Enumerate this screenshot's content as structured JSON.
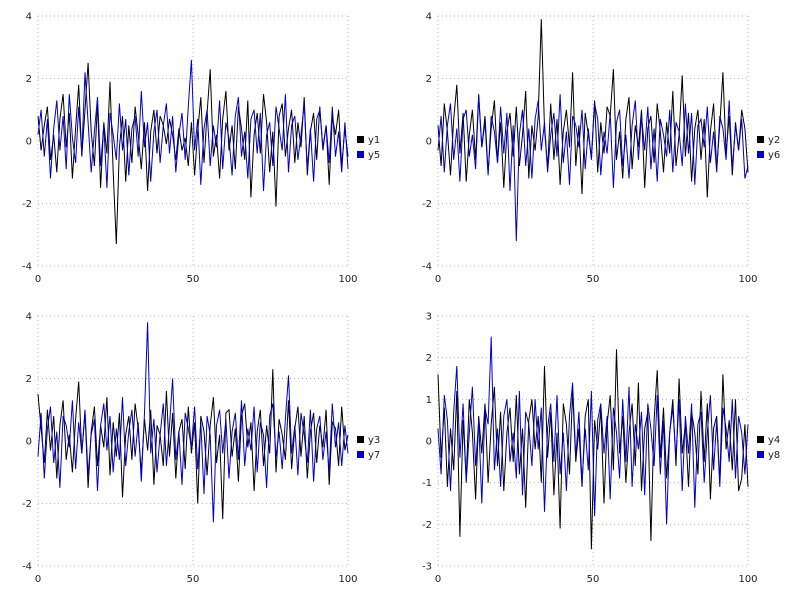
{
  "page": {
    "background": "#ffffff",
    "grid_color": "#b8b8b8",
    "tick_text_color": "#222222"
  },
  "chart_data": [
    {
      "type": "line",
      "x_range": [
        0,
        100
      ],
      "ylim": [
        -4,
        4
      ],
      "x_ticks": [
        0,
        50,
        100
      ],
      "y_ticks": [
        -4,
        -2,
        0,
        2,
        4
      ],
      "grid": true,
      "legend_position": "right",
      "series": [
        {
          "name": "y1",
          "color": "#000000",
          "values": [
            0.8,
            -0.3,
            0.5,
            1.1,
            -0.6,
            0.2,
            -1.0,
            0.7,
            1.5,
            -0.2,
            0.9,
            -1.2,
            0.4,
            1.8,
            -0.5,
            1.0,
            2.5,
            0.3,
            -0.8,
            1.2,
            -1.5,
            0.6,
            -0.4,
            1.9,
            -1.0,
            -3.3,
            -0.2,
            0.8,
            -1.3,
            0.5,
            -0.7,
            1.1,
            0.2,
            -0.9,
            0.6,
            -1.6,
            0.3,
            1.0,
            -0.4,
            0.8,
            0.5,
            -0.1,
            0.7,
            0.2,
            -0.6,
            0.4,
            -0.3,
            0.1,
            -0.8,
            0.6,
            -1.1,
            0.3,
            1.4,
            -0.7,
            0.9,
            2.3,
            -0.5,
            0.2,
            -1.2,
            0.7,
            1.6,
            -0.3,
            0.5,
            -0.9,
            1.1,
            0.4,
            -0.6,
            1.3,
            -1.8,
            0.2,
            0.9,
            -0.4,
            1.5,
            0.6,
            -1.0,
            0.3,
            -2.1,
            0.8,
            1.2,
            -0.5,
            0.4,
            1.0,
            -0.7,
            0.6,
            -0.2,
            1.4,
            -1.1,
            0.3,
            0.9,
            -0.6,
            1.1,
            -0.3,
            0.5,
            -1.4,
            0.8,
            0.2,
            1.0,
            -0.8,
            0.4,
            -0.5
          ]
        },
        {
          "name": "y5",
          "color": "#0000cc",
          "values": [
            0.2,
            1.0,
            -0.5,
            0.7,
            -1.2,
            0.4,
            1.3,
            -0.3,
            0.8,
            -0.9,
            1.5,
            0.1,
            -0.7,
            1.1,
            -0.4,
            2.2,
            0.6,
            -1.0,
            0.3,
            1.4,
            -0.8,
            0.5,
            -1.5,
            0.9,
            0.2,
            -0.6,
            1.2,
            -0.3,
            0.7,
            -1.1,
            0.4,
            0.8,
            -0.5,
            1.6,
            -0.2,
            0.6,
            -1.3,
            0.3,
            1.0,
            -0.7,
            0.5,
            1.2,
            -0.4,
            0.8,
            -1.0,
            0.2,
            0.9,
            -0.6,
            1.1,
            2.6,
            -0.3,
            0.7,
            -1.4,
            0.4,
            1.0,
            -0.8,
            0.5,
            -0.2,
            1.3,
            -0.9,
            0.6,
            0.1,
            -1.1,
            0.8,
            1.4,
            -0.5,
            0.3,
            -1.2,
            0.7,
            1.0,
            -0.4,
            0.9,
            -1.6,
            0.2,
            0.6,
            -0.8,
            1.1,
            0.4,
            -0.3,
            1.5,
            -1.0,
            0.5,
            0.8,
            -0.6,
            0.2,
            1.2,
            -0.9,
            0.4,
            -1.3,
            0.7,
            1.0,
            -0.2,
            0.5,
            -0.7,
            1.1,
            -0.5,
            0.3,
            -1.0,
            0.6,
            -0.9
          ]
        }
      ]
    },
    {
      "type": "line",
      "x_range": [
        0,
        100
      ],
      "ylim": [
        -4,
        4
      ],
      "x_ticks": [
        0,
        50,
        100
      ],
      "y_ticks": [
        -4,
        -2,
        0,
        2,
        4
      ],
      "grid": true,
      "legend_position": "right",
      "series": [
        {
          "name": "y2",
          "color": "#000000",
          "values": [
            0.5,
            -0.8,
            1.2,
            0.3,
            -1.1,
            0.7,
            1.8,
            -0.4,
            0.9,
            -1.3,
            0.2,
            1.0,
            -0.6,
            1.5,
            -0.2,
            0.8,
            -1.0,
            0.4,
            1.3,
            -0.7,
            0.6,
            -1.5,
            0.3,
            0.9,
            -0.5,
            1.1,
            -0.8,
            0.2,
            1.6,
            -1.2,
            0.5,
            -0.3,
            0.8,
            3.9,
            0.4,
            -0.9,
            1.2,
            -0.6,
            0.7,
            -1.4,
            0.3,
            1.0,
            -0.2,
            2.2,
            -0.8,
            0.5,
            -1.7,
            0.9,
            0.2,
            -0.5,
            1.3,
            -1.0,
            0.6,
            -0.4,
            1.1,
            0.8,
            2.3,
            -0.6,
            0.3,
            -1.2,
            0.7,
            1.4,
            -0.9,
            0.5,
            -0.2,
            1.0,
            -1.5,
            0.4,
            0.8,
            -0.7,
            1.2,
            0.3,
            -1.0,
            0.6,
            -0.4,
            1.6,
            -0.8,
            0.2,
            2.1,
            -0.5,
            0.9,
            -1.3,
            0.4,
            1.0,
            -0.6,
            0.7,
            -1.8,
            0.3,
            1.2,
            -0.9,
            0.5,
            2.2,
            -0.4,
            0.8,
            -1.1,
            0.6,
            -0.3,
            1.0,
            0.4,
            -1.0
          ]
        },
        {
          "name": "y6",
          "color": "#0000cc",
          "values": [
            -0.3,
            0.8,
            -1.0,
            0.5,
            1.2,
            -0.6,
            0.4,
            -1.3,
            0.7,
            1.0,
            -0.5,
            0.2,
            -0.9,
            1.4,
            -0.2,
            0.6,
            -1.1,
            0.8,
            0.3,
            -0.7,
            1.1,
            -0.4,
            0.9,
            -1.6,
            0.5,
            -3.2,
            0.2,
            1.0,
            -0.8,
            0.4,
            -1.2,
            0.7,
            1.3,
            -0.3,
            0.6,
            -1.0,
            0.2,
            0.9,
            -0.5,
            1.5,
            -0.7,
            0.3,
            -1.4,
            0.8,
            0.5,
            -0.2,
            1.0,
            -0.9,
            0.4,
            -0.6,
            1.2,
            0.7,
            -1.1,
            0.3,
            -0.4,
            0.9,
            -1.5,
            0.6,
            1.0,
            -0.8,
            0.2,
            -1.2,
            0.5,
            1.3,
            -0.6,
            0.8,
            -0.3,
            1.1,
            -0.9,
            0.4,
            -1.3,
            0.7,
            0.2,
            -0.5,
            1.0,
            -1.0,
            0.6,
            0.3,
            -0.8,
            1.2,
            -0.4,
            0.9,
            -1.4,
            0.5,
            0.7,
            -0.2,
            1.1,
            -0.7,
            0.3,
            -1.0,
            0.8,
            0.4,
            -0.6,
            1.3,
            -0.9,
            0.5,
            -0.3,
            0.7,
            -1.2,
            -0.8
          ]
        }
      ]
    },
    {
      "type": "line",
      "x_range": [
        0,
        100
      ],
      "ylim": [
        -4,
        4
      ],
      "x_ticks": [
        0,
        50,
        100
      ],
      "y_ticks": [
        -4,
        -2,
        0,
        2,
        4
      ],
      "grid": true,
      "legend_position": "right",
      "series": [
        {
          "name": "y3",
          "color": "#000000",
          "values": [
            1.5,
            0.4,
            -0.7,
            1.0,
            -0.3,
            0.8,
            -1.2,
            0.5,
            1.3,
            -0.6,
            0.2,
            -1.0,
            0.7,
            1.9,
            -0.4,
            0.9,
            -1.5,
            0.3,
            1.1,
            -0.8,
            0.5,
            -0.2,
            1.4,
            -1.1,
            0.6,
            -0.5,
            0.9,
            -1.8,
            0.2,
            0.8,
            -0.6,
            1.2,
            0.4,
            -1.0,
            0.7,
            -0.3,
            1.0,
            -1.4,
            0.5,
            0.2,
            -0.8,
            1.6,
            -0.5,
            0.9,
            -1.2,
            0.3,
            0.7,
            -0.9,
            1.1,
            -0.4,
            0.6,
            -2.0,
            0.8,
            0.3,
            -1.1,
            0.5,
            1.4,
            -0.7,
            0.2,
            -2.5,
            0.9,
            1.0,
            -0.5,
            0.4,
            -1.3,
            0.8,
            1.2,
            -0.2,
            0.6,
            -1.6,
            0.3,
            1.0,
            -0.8,
            0.5,
            -0.4,
            2.3,
            -1.0,
            0.7,
            0.2,
            -0.6,
            1.3,
            -0.9,
            0.4,
            1.1,
            -0.5,
            0.8,
            -1.2,
            0.3,
            0.9,
            -0.7,
            0.5,
            -0.2,
            1.0,
            -1.4,
            0.6,
            0.4,
            -0.8,
            1.1,
            -0.3,
            0.2
          ]
        },
        {
          "name": "y7",
          "color": "#0000cc",
          "values": [
            -0.5,
            0.9,
            -1.2,
            0.4,
            1.1,
            -0.7,
            0.3,
            -1.5,
            0.8,
            0.5,
            -0.2,
            1.3,
            -0.9,
            0.6,
            -0.4,
            1.0,
            -1.1,
            0.2,
            0.7,
            -1.6,
            0.5,
            1.2,
            -0.3,
            0.8,
            -1.0,
            0.4,
            -0.6,
            1.4,
            -0.8,
            0.3,
            1.0,
            -0.5,
            0.6,
            -1.3,
            0.9,
            3.8,
            -0.4,
            0.7,
            -1.0,
            0.2,
            1.2,
            -0.8,
            0.5,
            2.0,
            -0.6,
            0.3,
            -1.4,
            0.9,
            0.4,
            -0.2,
            1.1,
            -0.9,
            0.6,
            -1.7,
            0.8,
            0.2,
            -2.6,
            0.5,
            1.0,
            -0.4,
            0.7,
            -1.2,
            0.3,
            0.9,
            -0.6,
            1.3,
            -0.8,
            0.4,
            -0.3,
            1.1,
            -1.0,
            0.6,
            0.2,
            -1.5,
            0.8,
            1.2,
            -0.5,
            0.3,
            -0.9,
            0.7,
            2.1,
            -0.4,
            0.5,
            -1.1,
            0.9,
            0.2,
            -0.7,
            1.0,
            -1.3,
            0.4,
            0.8,
            -0.6,
            0.3,
            -1.0,
            1.2,
            -0.2,
            0.6,
            -0.8,
            0.5,
            -0.4
          ]
        }
      ]
    },
    {
      "type": "line",
      "x_range": [
        0,
        100
      ],
      "ylim": [
        -3,
        3
      ],
      "x_ticks": [
        0,
        50,
        100
      ],
      "y_ticks": [
        -3,
        -2,
        -1,
        0,
        1,
        2,
        3
      ],
      "grid": true,
      "legend_position": "right",
      "series": [
        {
          "name": "y4",
          "color": "#000000",
          "values": [
            1.6,
            -0.4,
            0.8,
            -1.1,
            0.3,
            -0.7,
            1.2,
            -2.3,
            0.5,
            -0.9,
            1.0,
            0.2,
            -1.4,
            0.6,
            -0.3,
            0.9,
            -1.0,
            0.4,
            1.3,
            -0.6,
            0.7,
            -1.2,
            0.2,
            0.8,
            -0.5,
            1.1,
            -0.8,
            0.3,
            -1.6,
            0.5,
            1.0,
            -0.2,
            0.6,
            -1.0,
            1.8,
            -0.4,
            0.7,
            -1.3,
            0.2,
            -2.1,
            0.9,
            0.4,
            -0.8,
            1.2,
            -0.5,
            0.3,
            -1.1,
            0.6,
            1.0,
            -2.6,
            0.5,
            -0.2,
            0.8,
            -1.5,
            0.4,
            1.1,
            -0.7,
            2.2,
            -0.3,
            0.6,
            -1.0,
            0.2,
            0.9,
            -0.6,
            1.4,
            -1.2,
            0.3,
            0.7,
            -2.4,
            0.5,
            1.7,
            -0.4,
            0.8,
            -0.9,
            0.2,
            1.0,
            -0.6,
            1.5,
            -0.3,
            0.4,
            -1.1,
            0.7,
            0.2,
            -0.8,
            1.2,
            -0.5,
            0.9,
            -1.4,
            0.3,
            0.6,
            -1.0,
            1.6,
            -0.2,
            0.5,
            -0.7,
            1.0,
            -1.2,
            -0.9,
            0.4,
            -1.1
          ]
        },
        {
          "name": "y8",
          "color": "#0000cc",
          "values": [
            0.3,
            -0.8,
            1.1,
            0.5,
            -1.2,
            0.7,
            1.8,
            -0.4,
            0.9,
            -1.0,
            0.2,
            1.3,
            -0.6,
            0.5,
            -1.5,
            0.8,
            0.4,
            2.5,
            -0.7,
            0.3,
            -1.1,
            0.6,
            1.0,
            -0.5,
            0.2,
            -0.9,
            1.2,
            -1.3,
            0.7,
            0.4,
            -0.6,
            1.0,
            -0.2,
            0.8,
            -1.7,
            0.3,
            0.9,
            -0.5,
            1.1,
            -0.8,
            0.2,
            -1.2,
            0.6,
            1.4,
            -0.4,
            0.7,
            -1.0,
            0.3,
            -0.7,
            1.2,
            -1.8,
            0.5,
            0.9,
            -0.3,
            0.6,
            -1.4,
            0.8,
            0.2,
            -0.9,
            1.0,
            -0.5,
            1.3,
            -1.1,
            0.4,
            -0.2,
            0.7,
            -1.3,
            0.9,
            0.3,
            -0.6,
            1.1,
            -0.8,
            0.5,
            -2.0,
            0.2,
            0.8,
            -0.4,
            1.0,
            -1.2,
            0.6,
            -0.3,
            0.9,
            -1.6,
            0.4,
            0.7,
            -1.0,
            0.2,
            1.1,
            -0.7,
            0.5,
            -1.1,
            0.8,
            0.3,
            -0.5,
            1.0,
            -0.9,
            0.6,
            0.2,
            -0.8,
            0.4
          ]
        }
      ]
    }
  ]
}
